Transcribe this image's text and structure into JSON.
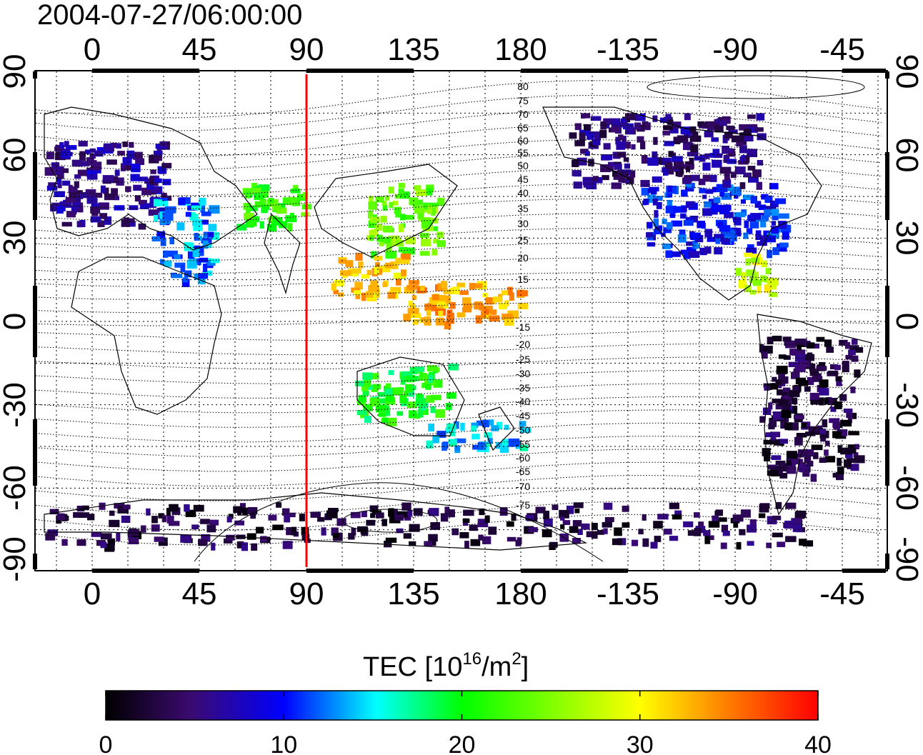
{
  "title": "2004-07-27/06:00:00",
  "map": {
    "x_ticks_top": [
      "0",
      "45",
      "90",
      "135",
      "180",
      "-135",
      "-90",
      "-45"
    ],
    "x_ticks_bottom": [
      "0",
      "45",
      "90",
      "135",
      "180",
      "-135",
      "-90",
      "-45"
    ],
    "y_ticks_left": [
      "90",
      "60",
      "30",
      "0",
      "-30",
      "-60",
      "-90"
    ],
    "y_ticks_right": [
      "90",
      "60",
      "30",
      "0",
      "-30",
      "-60",
      "-90"
    ],
    "contour_labels": [
      "80",
      "75",
      "70",
      "65",
      "60",
      "55",
      "50",
      "45",
      "40",
      "35",
      "30",
      "25",
      "20",
      "15",
      "-15",
      "-20",
      "-25",
      "-30",
      "-35",
      "-40",
      "-45",
      "-50",
      "-55",
      "-60",
      "-65",
      "-70",
      "-75"
    ],
    "marker_longitude": 90,
    "colors": {
      "marker": "#ff0000",
      "grid": "#000000"
    }
  },
  "colorbar": {
    "label_main": "TEC  [10",
    "label_exp1": "16",
    "label_mid": "/m",
    "label_exp2": "2",
    "label_end": "]",
    "ticks": [
      "0",
      "10",
      "20",
      "30",
      "40"
    ],
    "range": [
      0,
      40
    ],
    "colors": [
      "#000000",
      "#3b0a70",
      "#0000ff",
      "#00ffff",
      "#00ff00",
      "#ffff00",
      "#ff8000",
      "#ff0000"
    ]
  },
  "chart_data": {
    "type": "heatmap",
    "title": "2004-07-27/06:00:00",
    "xlabel": "",
    "ylabel": "",
    "colorbar_label": "TEC [10^16/m^2]",
    "xlim": [
      -25,
      335
    ],
    "ylim": [
      -90,
      90
    ],
    "clim": [
      0,
      40
    ],
    "regions": [
      {
        "lon": [
          -20,
          30
        ],
        "lat": [
          35,
          65
        ],
        "tec": 6
      },
      {
        "lon": [
          25,
          50
        ],
        "lat": [
          15,
          45
        ],
        "tec": 13
      },
      {
        "lon": [
          60,
          90
        ],
        "lat": [
          35,
          50
        ],
        "tec": 22
      },
      {
        "lon": [
          115,
          145
        ],
        "lat": [
          25,
          50
        ],
        "tec": 24
      },
      {
        "lon": [
          100,
          130
        ],
        "lat": [
          10,
          25
        ],
        "tec": 32
      },
      {
        "lon": [
          130,
          180
        ],
        "lat": [
          0,
          15
        ],
        "tec": 33
      },
      {
        "lon": [
          110,
          150
        ],
        "lat": [
          -35,
          -15
        ],
        "tec": 20
      },
      {
        "lon": [
          140,
          180
        ],
        "lat": [
          -45,
          -35
        ],
        "tec": 14
      },
      {
        "lon": [
          230,
          290
        ],
        "lat": [
          25,
          50
        ],
        "tec": 10
      },
      {
        "lon": [
          270,
          285
        ],
        "lat": [
          10,
          25
        ],
        "tec": 28
      },
      {
        "lon": [
          280,
          320
        ],
        "lat": [
          -55,
          -5
        ],
        "tec": 3
      },
      {
        "lon": [
          200,
          280
        ],
        "lat": [
          50,
          75
        ],
        "tec": 5
      },
      {
        "lon": [
          -20,
          300
        ],
        "lat": [
          -80,
          -65
        ],
        "tec": 3
      }
    ]
  }
}
